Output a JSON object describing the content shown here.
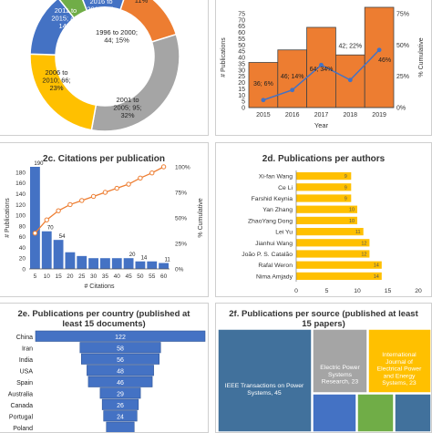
{
  "colors": {
    "blue": "#4472c4",
    "orange": "#ed7d31",
    "gray": "#a5a5a5",
    "yellow": "#ffc000",
    "green": "#70ad47",
    "funnel_blue": "#4472c4",
    "ttl_blue": "#41719c"
  },
  "chart_data": [
    {
      "id": "2a",
      "type": "pie",
      "title": "",
      "slices": [
        {
          "label": "1996 to 2000; 44; 15%",
          "value": 44,
          "pct": 15
        },
        {
          "label": "2001 to 2005; 95; 32%",
          "value": 95,
          "pct": 32
        },
        {
          "label": "2006 to 2010; 66; 23%",
          "value": 66,
          "pct": 23
        },
        {
          "label": "2011 to 2015; 40; 14%",
          "value": 40,
          "pct": 14
        },
        {
          "label": "2016 to 2019; 14; 5%",
          "value": 14,
          "pct": 5
        },
        {
          "label": "11%",
          "value": 32,
          "pct": 11
        }
      ]
    },
    {
      "id": "2b",
      "type": "bar",
      "title": "",
      "categories": [
        "2015",
        "2016",
        "2017",
        "2018",
        "2019"
      ],
      "values": [
        36,
        46,
        64,
        42,
        80
      ],
      "cumulative": [
        6,
        14,
        34,
        22,
        46
      ],
      "labels": [
        "36; 6%",
        "46; 14%",
        "64; 34%",
        "42; 22%",
        "46%"
      ],
      "xlabel": "Year",
      "ylabel": "# Publications",
      "y2label": "% Cumulative",
      "y_ticks": [
        "75",
        "70",
        "65",
        "60",
        "55",
        "50",
        "45",
        "40",
        "35",
        "30",
        "25",
        "20",
        "15",
        "10",
        "5",
        "0"
      ],
      "y2_ticks": [
        "75%",
        "50%",
        "25%",
        "0%"
      ]
    },
    {
      "id": "2c",
      "type": "bar",
      "title": "2c. Citations per publication",
      "categories": [
        "5",
        "10",
        "15",
        "20",
        "25",
        "30",
        "35",
        "40",
        "45",
        "50",
        "55",
        "60"
      ],
      "values": [
        190,
        70,
        54,
        31,
        24,
        20,
        20,
        20,
        20,
        14,
        14,
        11
      ],
      "data_labels": [
        "190",
        "70",
        "54",
        "",
        "",
        "",
        "",
        "",
        "20",
        "14",
        "",
        "11"
      ],
      "cumulative": [
        35,
        48,
        57,
        63,
        67,
        71,
        75,
        79,
        83,
        89,
        94,
        100
      ],
      "xlabel": "# Citations",
      "ylabel": "# Publications",
      "y2label": "% Cumulative",
      "y_ticks": [
        "180",
        "160",
        "140",
        "120",
        "100",
        "80",
        "60",
        "40",
        "20",
        "0"
      ],
      "y2_ticks": [
        "100%",
        "75%",
        "50%",
        "25%",
        "0%"
      ],
      "ylim": [
        0,
        190
      ]
    },
    {
      "id": "2d",
      "type": "bar",
      "orientation": "horizontal",
      "title": "2d. Publications per authors",
      "categories": [
        "Xi-fan Wang",
        "Ce Li",
        "Farshid Keynia",
        "Yan Zhang",
        "ZhaoYang Dong",
        "Lei Yu",
        "Jianhui Wang",
        "João P. S. Catalão",
        "Rafal Weron",
        "Nima Amjady"
      ],
      "values": [
        9,
        9,
        9,
        10,
        10,
        11,
        12,
        12,
        14,
        14
      ],
      "x_ticks": [
        "0",
        "5",
        "10",
        "15",
        "20"
      ],
      "xlim": [
        0,
        20
      ]
    },
    {
      "id": "2e",
      "type": "bar",
      "orientation": "funnel",
      "title": "2e. Publications per country (published at least 15 documents)",
      "categories": [
        "China",
        "Iran",
        "India",
        "USA",
        "Spain",
        "Australia",
        "Canada",
        "Portugal",
        "Poland"
      ],
      "values": [
        122,
        58,
        56,
        48,
        46,
        29,
        26,
        24,
        20
      ],
      "data_labels": [
        "122",
        "58",
        "56",
        "48",
        "46",
        "29",
        "26",
        "24",
        ""
      ]
    },
    {
      "id": "2f",
      "type": "heatmap",
      "title": "2f. Publications per source (published at least 15 papers)",
      "tiles": [
        {
          "label": "IEEE Transactions on Power Systems, 45",
          "value": 45
        },
        {
          "label": "Electric Power Systems Research, 23",
          "value": 23
        },
        {
          "label": "International Journal of Electrical Power and Energy Systems, 23",
          "value": 23
        }
      ]
    }
  ]
}
